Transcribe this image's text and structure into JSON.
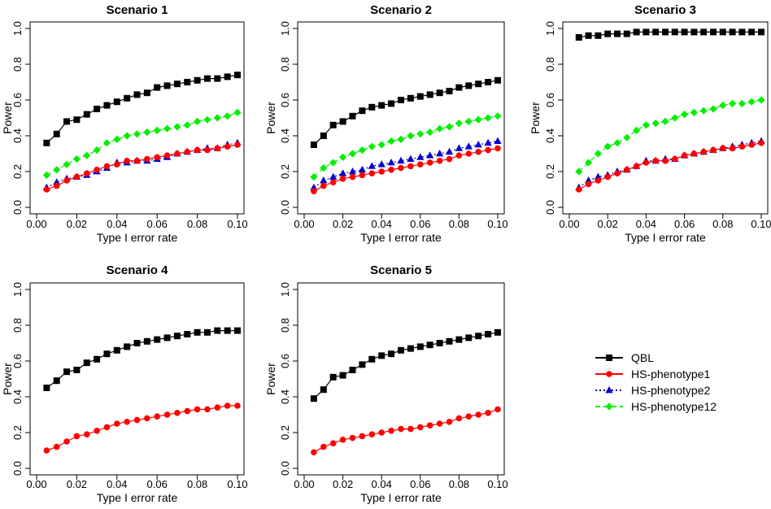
{
  "chart_data": [
    {
      "type": "line",
      "title": "Scenario 1",
      "xlabel": "Type I error rate",
      "ylabel": "Power",
      "xlim": [
        0,
        0.1
      ],
      "ylim": [
        0,
        1.0
      ],
      "xticks": [
        "0.00",
        "0.02",
        "0.04",
        "0.06",
        "0.08",
        "0.10"
      ],
      "yticks": [
        "0.0",
        "0.2",
        "0.4",
        "0.6",
        "0.8",
        "1.0"
      ],
      "x": [
        0.005,
        0.01,
        0.015,
        0.02,
        0.025,
        0.03,
        0.035,
        0.04,
        0.045,
        0.05,
        0.055,
        0.06,
        0.065,
        0.07,
        0.075,
        0.08,
        0.085,
        0.09,
        0.095,
        0.1
      ],
      "series": [
        {
          "name": "QBL",
          "values": [
            0.36,
            0.41,
            0.48,
            0.49,
            0.52,
            0.55,
            0.57,
            0.59,
            0.61,
            0.63,
            0.64,
            0.67,
            0.68,
            0.69,
            0.7,
            0.71,
            0.72,
            0.72,
            0.73,
            0.74
          ]
        },
        {
          "name": "HS-phenotype1",
          "values": [
            0.1,
            0.12,
            0.15,
            0.17,
            0.19,
            0.21,
            0.23,
            0.24,
            0.26,
            0.26,
            0.27,
            0.28,
            0.29,
            0.3,
            0.31,
            0.32,
            0.32,
            0.33,
            0.34,
            0.35
          ]
        },
        {
          "name": "HS-phenotype2",
          "values": [
            0.11,
            0.14,
            0.16,
            0.17,
            0.18,
            0.2,
            0.22,
            0.25,
            0.25,
            0.26,
            0.26,
            0.27,
            0.28,
            0.3,
            0.31,
            0.32,
            0.33,
            0.33,
            0.35,
            0.36
          ]
        },
        {
          "name": "HS-phenotype12",
          "values": [
            0.18,
            0.21,
            0.24,
            0.27,
            0.29,
            0.32,
            0.36,
            0.38,
            0.4,
            0.41,
            0.42,
            0.43,
            0.44,
            0.45,
            0.46,
            0.48,
            0.49,
            0.5,
            0.51,
            0.53
          ]
        }
      ]
    },
    {
      "type": "line",
      "title": "Scenario 2",
      "xlabel": "Type I error rate",
      "ylabel": "Power",
      "xlim": [
        0,
        0.1
      ],
      "ylim": [
        0,
        1.0
      ],
      "xticks": [
        "0.00",
        "0.02",
        "0.04",
        "0.06",
        "0.08",
        "0.10"
      ],
      "yticks": [
        "0.0",
        "0.2",
        "0.4",
        "0.6",
        "0.8",
        "1.0"
      ],
      "x": [
        0.005,
        0.01,
        0.015,
        0.02,
        0.025,
        0.03,
        0.035,
        0.04,
        0.045,
        0.05,
        0.055,
        0.06,
        0.065,
        0.07,
        0.075,
        0.08,
        0.085,
        0.09,
        0.095,
        0.1
      ],
      "series": [
        {
          "name": "QBL",
          "values": [
            0.35,
            0.4,
            0.46,
            0.48,
            0.51,
            0.54,
            0.56,
            0.57,
            0.58,
            0.6,
            0.61,
            0.62,
            0.63,
            0.64,
            0.65,
            0.67,
            0.68,
            0.69,
            0.7,
            0.71
          ]
        },
        {
          "name": "HS-phenotype1",
          "values": [
            0.09,
            0.12,
            0.14,
            0.16,
            0.17,
            0.18,
            0.19,
            0.2,
            0.21,
            0.22,
            0.23,
            0.24,
            0.25,
            0.26,
            0.27,
            0.29,
            0.3,
            0.31,
            0.32,
            0.33
          ]
        },
        {
          "name": "HS-phenotype2",
          "values": [
            0.11,
            0.15,
            0.17,
            0.19,
            0.2,
            0.21,
            0.23,
            0.24,
            0.25,
            0.26,
            0.27,
            0.28,
            0.29,
            0.3,
            0.31,
            0.33,
            0.34,
            0.35,
            0.36,
            0.37
          ]
        },
        {
          "name": "HS-phenotype12",
          "values": [
            0.17,
            0.22,
            0.25,
            0.28,
            0.3,
            0.32,
            0.34,
            0.35,
            0.37,
            0.38,
            0.4,
            0.41,
            0.42,
            0.44,
            0.45,
            0.47,
            0.48,
            0.49,
            0.5,
            0.51
          ]
        }
      ]
    },
    {
      "type": "line",
      "title": "Scenario 3",
      "xlabel": "Type I error rate",
      "ylabel": "Power",
      "xlim": [
        0,
        0.1
      ],
      "ylim": [
        0,
        1.0
      ],
      "xticks": [
        "0.00",
        "0.02",
        "0.04",
        "0.06",
        "0.08",
        "0.10"
      ],
      "yticks": [
        "0.0",
        "0.2",
        "0.4",
        "0.6",
        "0.8",
        "1.0"
      ],
      "x": [
        0.005,
        0.01,
        0.015,
        0.02,
        0.025,
        0.03,
        0.035,
        0.04,
        0.045,
        0.05,
        0.055,
        0.06,
        0.065,
        0.07,
        0.075,
        0.08,
        0.085,
        0.09,
        0.095,
        0.1
      ],
      "series": [
        {
          "name": "QBL",
          "values": [
            0.95,
            0.96,
            0.96,
            0.97,
            0.97,
            0.97,
            0.98,
            0.98,
            0.98,
            0.98,
            0.98,
            0.98,
            0.98,
            0.98,
            0.98,
            0.98,
            0.98,
            0.98,
            0.98,
            0.98
          ]
        },
        {
          "name": "HS-phenotype1",
          "values": [
            0.1,
            0.13,
            0.15,
            0.17,
            0.19,
            0.21,
            0.23,
            0.25,
            0.26,
            0.26,
            0.27,
            0.29,
            0.3,
            0.31,
            0.32,
            0.33,
            0.33,
            0.34,
            0.35,
            0.36
          ]
        },
        {
          "name": "HS-phenotype2",
          "values": [
            0.11,
            0.15,
            0.17,
            0.18,
            0.2,
            0.21,
            0.23,
            0.26,
            0.26,
            0.27,
            0.27,
            0.29,
            0.3,
            0.31,
            0.32,
            0.33,
            0.34,
            0.35,
            0.36,
            0.37
          ]
        },
        {
          "name": "HS-phenotype12",
          "values": [
            0.2,
            0.25,
            0.3,
            0.34,
            0.36,
            0.39,
            0.43,
            0.46,
            0.47,
            0.48,
            0.5,
            0.52,
            0.53,
            0.54,
            0.55,
            0.57,
            0.58,
            0.58,
            0.59,
            0.6
          ]
        }
      ]
    },
    {
      "type": "line",
      "title": "Scenario 4",
      "xlabel": "Type I error rate",
      "ylabel": "Power",
      "xlim": [
        0,
        0.1
      ],
      "ylim": [
        0,
        1.0
      ],
      "xticks": [
        "0.00",
        "0.02",
        "0.04",
        "0.06",
        "0.08",
        "0.10"
      ],
      "yticks": [
        "0.0",
        "0.2",
        "0.4",
        "0.6",
        "0.8",
        "1.0"
      ],
      "x": [
        0.005,
        0.01,
        0.015,
        0.02,
        0.025,
        0.03,
        0.035,
        0.04,
        0.045,
        0.05,
        0.055,
        0.06,
        0.065,
        0.07,
        0.075,
        0.08,
        0.085,
        0.09,
        0.095,
        0.1
      ],
      "series": [
        {
          "name": "QBL",
          "values": [
            0.45,
            0.49,
            0.54,
            0.55,
            0.59,
            0.61,
            0.64,
            0.66,
            0.68,
            0.7,
            0.71,
            0.72,
            0.73,
            0.74,
            0.75,
            0.76,
            0.76,
            0.77,
            0.77,
            0.77
          ]
        },
        {
          "name": "HS-phenotype1",
          "values": [
            0.1,
            0.12,
            0.15,
            0.18,
            0.19,
            0.21,
            0.23,
            0.25,
            0.26,
            0.27,
            0.28,
            0.29,
            0.3,
            0.31,
            0.32,
            0.33,
            0.33,
            0.34,
            0.35,
            0.35
          ]
        }
      ]
    },
    {
      "type": "line",
      "title": "Scenario 5",
      "xlabel": "Type I error rate",
      "ylabel": "Power",
      "xlim": [
        0,
        0.1
      ],
      "ylim": [
        0,
        1.0
      ],
      "xticks": [
        "0.00",
        "0.02",
        "0.04",
        "0.06",
        "0.08",
        "0.10"
      ],
      "yticks": [
        "0.0",
        "0.2",
        "0.4",
        "0.6",
        "0.8",
        "1.0"
      ],
      "x": [
        0.005,
        0.01,
        0.015,
        0.02,
        0.025,
        0.03,
        0.035,
        0.04,
        0.045,
        0.05,
        0.055,
        0.06,
        0.065,
        0.07,
        0.075,
        0.08,
        0.085,
        0.09,
        0.095,
        0.1
      ],
      "series": [
        {
          "name": "QBL",
          "values": [
            0.39,
            0.44,
            0.51,
            0.52,
            0.55,
            0.58,
            0.61,
            0.63,
            0.64,
            0.66,
            0.67,
            0.68,
            0.69,
            0.7,
            0.71,
            0.72,
            0.73,
            0.74,
            0.75,
            0.76
          ]
        },
        {
          "name": "HS-phenotype1",
          "values": [
            0.09,
            0.12,
            0.14,
            0.16,
            0.17,
            0.18,
            0.19,
            0.2,
            0.21,
            0.22,
            0.22,
            0.23,
            0.24,
            0.25,
            0.26,
            0.28,
            0.29,
            0.3,
            0.31,
            0.33
          ]
        }
      ]
    }
  ],
  "legend": {
    "position": "right",
    "entries": [
      {
        "name": "QBL",
        "color": "#000000",
        "marker": "square",
        "dash": "solid"
      },
      {
        "name": "HS-phenotype1",
        "color": "#ff0000",
        "marker": "circle",
        "dash": "solid"
      },
      {
        "name": "HS-phenotype2",
        "color": "#0000cc",
        "marker": "triangle",
        "dash": "dotted"
      },
      {
        "name": "HS-phenotype12",
        "color": "#00ee00",
        "marker": "diamond",
        "dash": "dashed"
      }
    ]
  }
}
